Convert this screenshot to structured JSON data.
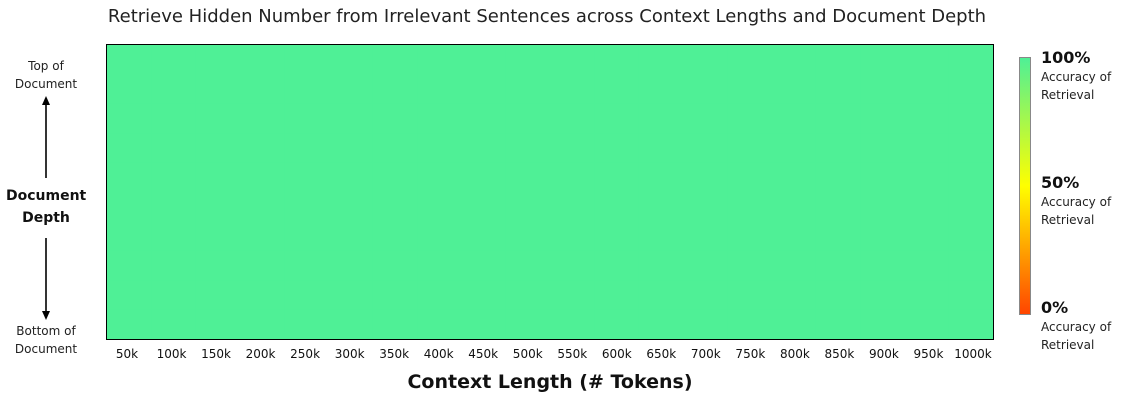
{
  "chart_data": {
    "type": "heatmap",
    "title": "Retrieve Hidden Number from Irrelevant Sentences across Context Lengths and Document Depth",
    "xlabel": "Context Length (# Tokens)",
    "ylabel": "Document Depth",
    "x": [
      "50k",
      "100k",
      "150k",
      "200k",
      "250k",
      "300k",
      "350k",
      "400k",
      "450k",
      "500k",
      "550k",
      "600k",
      "650k",
      "700k",
      "750k",
      "800k",
      "850k",
      "900k",
      "950k",
      "1000k"
    ],
    "y_top_label": "Top of\nDocument",
    "y_bottom_label": "Bottom of\nDocument",
    "depth_rows": 10,
    "values_description_uniform": 100,
    "values": [
      [
        100,
        100,
        100,
        100,
        100,
        100,
        100,
        100,
        100,
        100,
        100,
        100,
        100,
        100,
        100,
        100,
        100,
        100,
        100,
        100
      ],
      [
        100,
        100,
        100,
        100,
        100,
        100,
        100,
        100,
        100,
        100,
        100,
        100,
        100,
        100,
        100,
        100,
        100,
        100,
        100,
        100
      ],
      [
        100,
        100,
        100,
        100,
        100,
        100,
        100,
        100,
        100,
        100,
        100,
        100,
        100,
        100,
        100,
        100,
        100,
        100,
        100,
        100
      ],
      [
        100,
        100,
        100,
        100,
        100,
        100,
        100,
        100,
        100,
        100,
        100,
        100,
        100,
        100,
        100,
        100,
        100,
        100,
        100,
        100
      ],
      [
        100,
        100,
        100,
        100,
        100,
        100,
        100,
        100,
        100,
        100,
        100,
        100,
        100,
        100,
        100,
        100,
        100,
        100,
        100,
        100
      ],
      [
        100,
        100,
        100,
        100,
        100,
        100,
        100,
        100,
        100,
        100,
        100,
        100,
        100,
        100,
        100,
        100,
        100,
        100,
        100,
        100
      ],
      [
        100,
        100,
        100,
        100,
        100,
        100,
        100,
        100,
        100,
        100,
        100,
        100,
        100,
        100,
        100,
        100,
        100,
        100,
        100,
        100
      ],
      [
        100,
        100,
        100,
        100,
        100,
        100,
        100,
        100,
        100,
        100,
        100,
        100,
        100,
        100,
        100,
        100,
        100,
        100,
        100,
        100
      ],
      [
        100,
        100,
        100,
        100,
        100,
        100,
        100,
        100,
        100,
        100,
        100,
        100,
        100,
        100,
        100,
        100,
        100,
        100,
        100,
        100
      ],
      [
        100,
        100,
        100,
        100,
        100,
        100,
        100,
        100,
        100,
        100,
        100,
        100,
        100,
        100,
        100,
        100,
        100,
        100,
        100,
        100
      ]
    ],
    "colorbar": {
      "range": [
        0,
        100
      ],
      "colors": [
        "#ff4500",
        "#ffff00",
        "#4ff096"
      ],
      "entries": [
        {
          "value": "100%",
          "desc": "Accuracy of\nRetrieval"
        },
        {
          "value": "50%",
          "desc": "Accuracy of\nRetrieval"
        },
        {
          "value": "0%",
          "desc": "Accuracy of\nRetrieval"
        }
      ]
    },
    "grid": false
  }
}
